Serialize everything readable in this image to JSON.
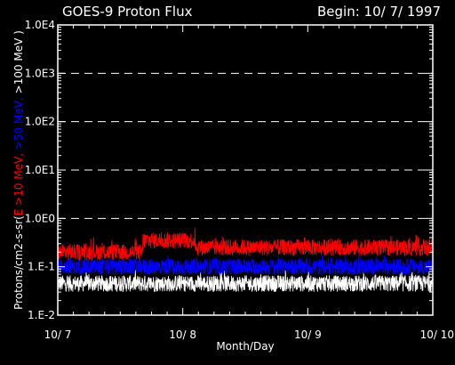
{
  "chart_data": {
    "type": "line",
    "title": "GOES-9 Proton Flux",
    "begin_label": "Begin: 10/ 7/ 1997",
    "xlabel": "Month/Day",
    "ylabel_parts": [
      {
        "text": "Protons/cm2-s-sr(",
        "color": "#ffffff"
      },
      {
        "text": "E >10 MeV, ",
        "color": "#ff0000"
      },
      {
        "text": ">50 MeV, ",
        "color": "#0000ff"
      },
      {
        "text": ">100 MeV )",
        "color": "#ffffff"
      }
    ],
    "y_scale": "log",
    "ylim": [
      0.01,
      10000
    ],
    "yticks": [
      {
        "value": 0.01,
        "label": "1.E-2"
      },
      {
        "value": 0.1,
        "label": "1.E-1"
      },
      {
        "value": 1,
        "label": "1.0E0"
      },
      {
        "value": 10,
        "label": "1.0E1"
      },
      {
        "value": 100,
        "label": "1.0E2"
      },
      {
        "value": 1000,
        "label": "1.0E3"
      },
      {
        "value": 10000,
        "label": "1.0E4"
      }
    ],
    "grid_y_values": [
      1,
      10,
      100,
      1000
    ],
    "xlim": [
      0,
      3
    ],
    "xticks": [
      {
        "value": 0,
        "label": "10/ 7"
      },
      {
        "value": 1,
        "label": "10/ 8"
      },
      {
        "value": 2,
        "label": "10/ 9"
      },
      {
        "value": 3,
        "label": "10/ 10"
      }
    ],
    "series": [
      {
        "name": "E >10 MeV",
        "color": "#ff0000",
        "baseline": 0.22,
        "min": 0.13,
        "max": 0.65,
        "segments": [
          {
            "x0": 0.0,
            "x1": 0.68,
            "level": 0.2
          },
          {
            "x0": 0.68,
            "x1": 1.1,
            "level": 0.35
          },
          {
            "x0": 1.1,
            "x1": 3.0,
            "level": 0.25
          }
        ]
      },
      {
        "name": ">50 MeV",
        "color": "#0000ff",
        "baseline": 0.1,
        "min": 0.07,
        "max": 0.17,
        "segments": [
          {
            "x0": 0.0,
            "x1": 3.0,
            "level": 0.1
          }
        ]
      },
      {
        "name": ">100 MeV",
        "color": "#ffffff",
        "baseline": 0.045,
        "min": 0.028,
        "max": 0.085,
        "segments": [
          {
            "x0": 0.0,
            "x1": 3.0,
            "level": 0.045
          }
        ]
      }
    ],
    "grid": true,
    "legend": "none"
  }
}
